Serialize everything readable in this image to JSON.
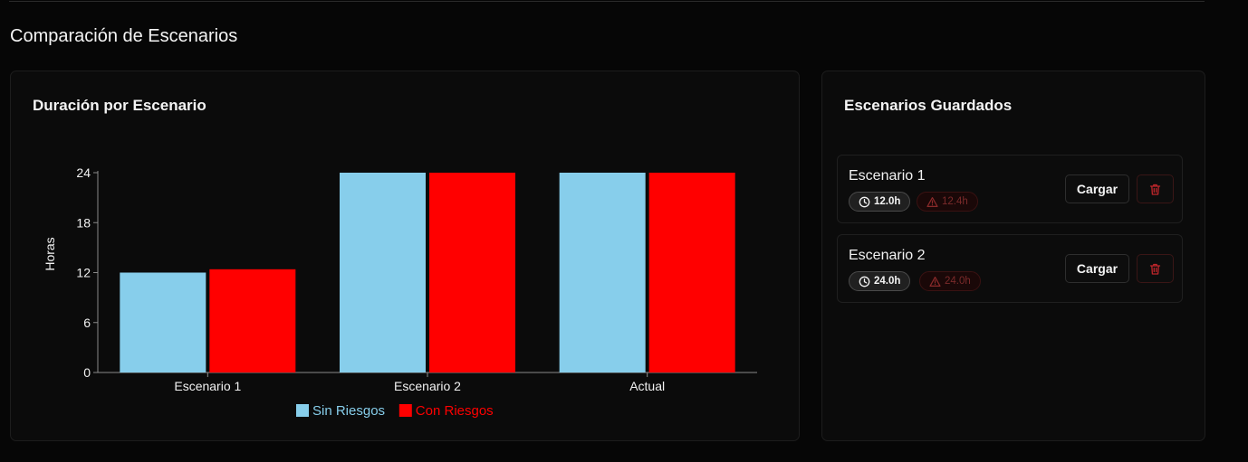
{
  "section_title": "Comparación de Escenarios",
  "chart_card": {
    "title": "Duración por Escenario"
  },
  "chart_data": {
    "type": "bar",
    "title": "",
    "ylabel": "Horas",
    "xlabel": "",
    "categories": [
      "Escenario 1",
      "Escenario 2",
      "Actual"
    ],
    "series": [
      {
        "name": "Sin Riesgos",
        "color": "#87ceeb",
        "values": [
          12.0,
          24.0,
          24.0
        ]
      },
      {
        "name": "Con Riesgos",
        "color": "#ff0000",
        "values": [
          12.4,
          24.0,
          24.0
        ]
      }
    ],
    "ylim": [
      0,
      24
    ],
    "yticks": [
      "0",
      "6",
      "12",
      "18",
      "24"
    ],
    "legend": "bottom-center",
    "grid": false
  },
  "saved": {
    "title": "Escenarios Guardados",
    "items": [
      {
        "name": "Escenario 1",
        "time": "12.0h",
        "risk": "12.4h",
        "load_label": "Cargar"
      },
      {
        "name": "Escenario 2",
        "time": "24.0h",
        "risk": "24.0h",
        "load_label": "Cargar"
      }
    ],
    "icons": {
      "time": "clock-icon",
      "risk": "warning-icon",
      "delete": "trash-icon"
    },
    "colors": {
      "delete": "#c0262b",
      "risk_text": "#7a2a2a"
    }
  }
}
